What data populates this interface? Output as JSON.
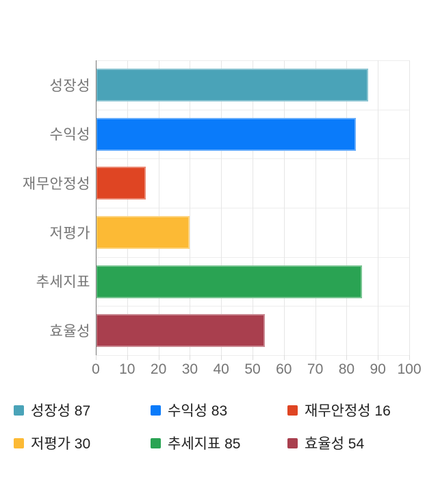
{
  "chart_data": {
    "type": "bar",
    "orientation": "horizontal",
    "title": "",
    "xlabel": "",
    "ylabel": "",
    "categories": [
      "성장성",
      "수익성",
      "재무안정성",
      "저평가",
      "추세지표",
      "효율성"
    ],
    "values": [
      87,
      83,
      16,
      30,
      85,
      54
    ],
    "colors": [
      "#4AA3B8",
      "#0A7BFA",
      "#DF4523",
      "#FCBA35",
      "#2AA353",
      "#A93F4E"
    ],
    "xlim": [
      0,
      100
    ],
    "xticks": [
      0,
      10,
      20,
      30,
      40,
      50,
      60,
      70,
      80,
      90,
      100
    ],
    "grid": true,
    "legend_position": "bottom",
    "legend": [
      {
        "label": "성장성",
        "value": 87,
        "color": "#4AA3B8"
      },
      {
        "label": "수익성",
        "value": 83,
        "color": "#0A7BFA"
      },
      {
        "label": "재무안정성",
        "value": 16,
        "color": "#DF4523"
      },
      {
        "label": "저평가",
        "value": 30,
        "color": "#FCBA35"
      },
      {
        "label": "추세지표",
        "value": 85,
        "color": "#2AA353"
      },
      {
        "label": "효율성",
        "value": 54,
        "color": "#A93F4E"
      }
    ]
  },
  "colors": {
    "background": "#ffffff",
    "axis_text": "#757575",
    "legend_text": "#212121",
    "gridline": "#e6e6e6",
    "row_gridline": "#ededed",
    "axis_line": "#757575"
  }
}
